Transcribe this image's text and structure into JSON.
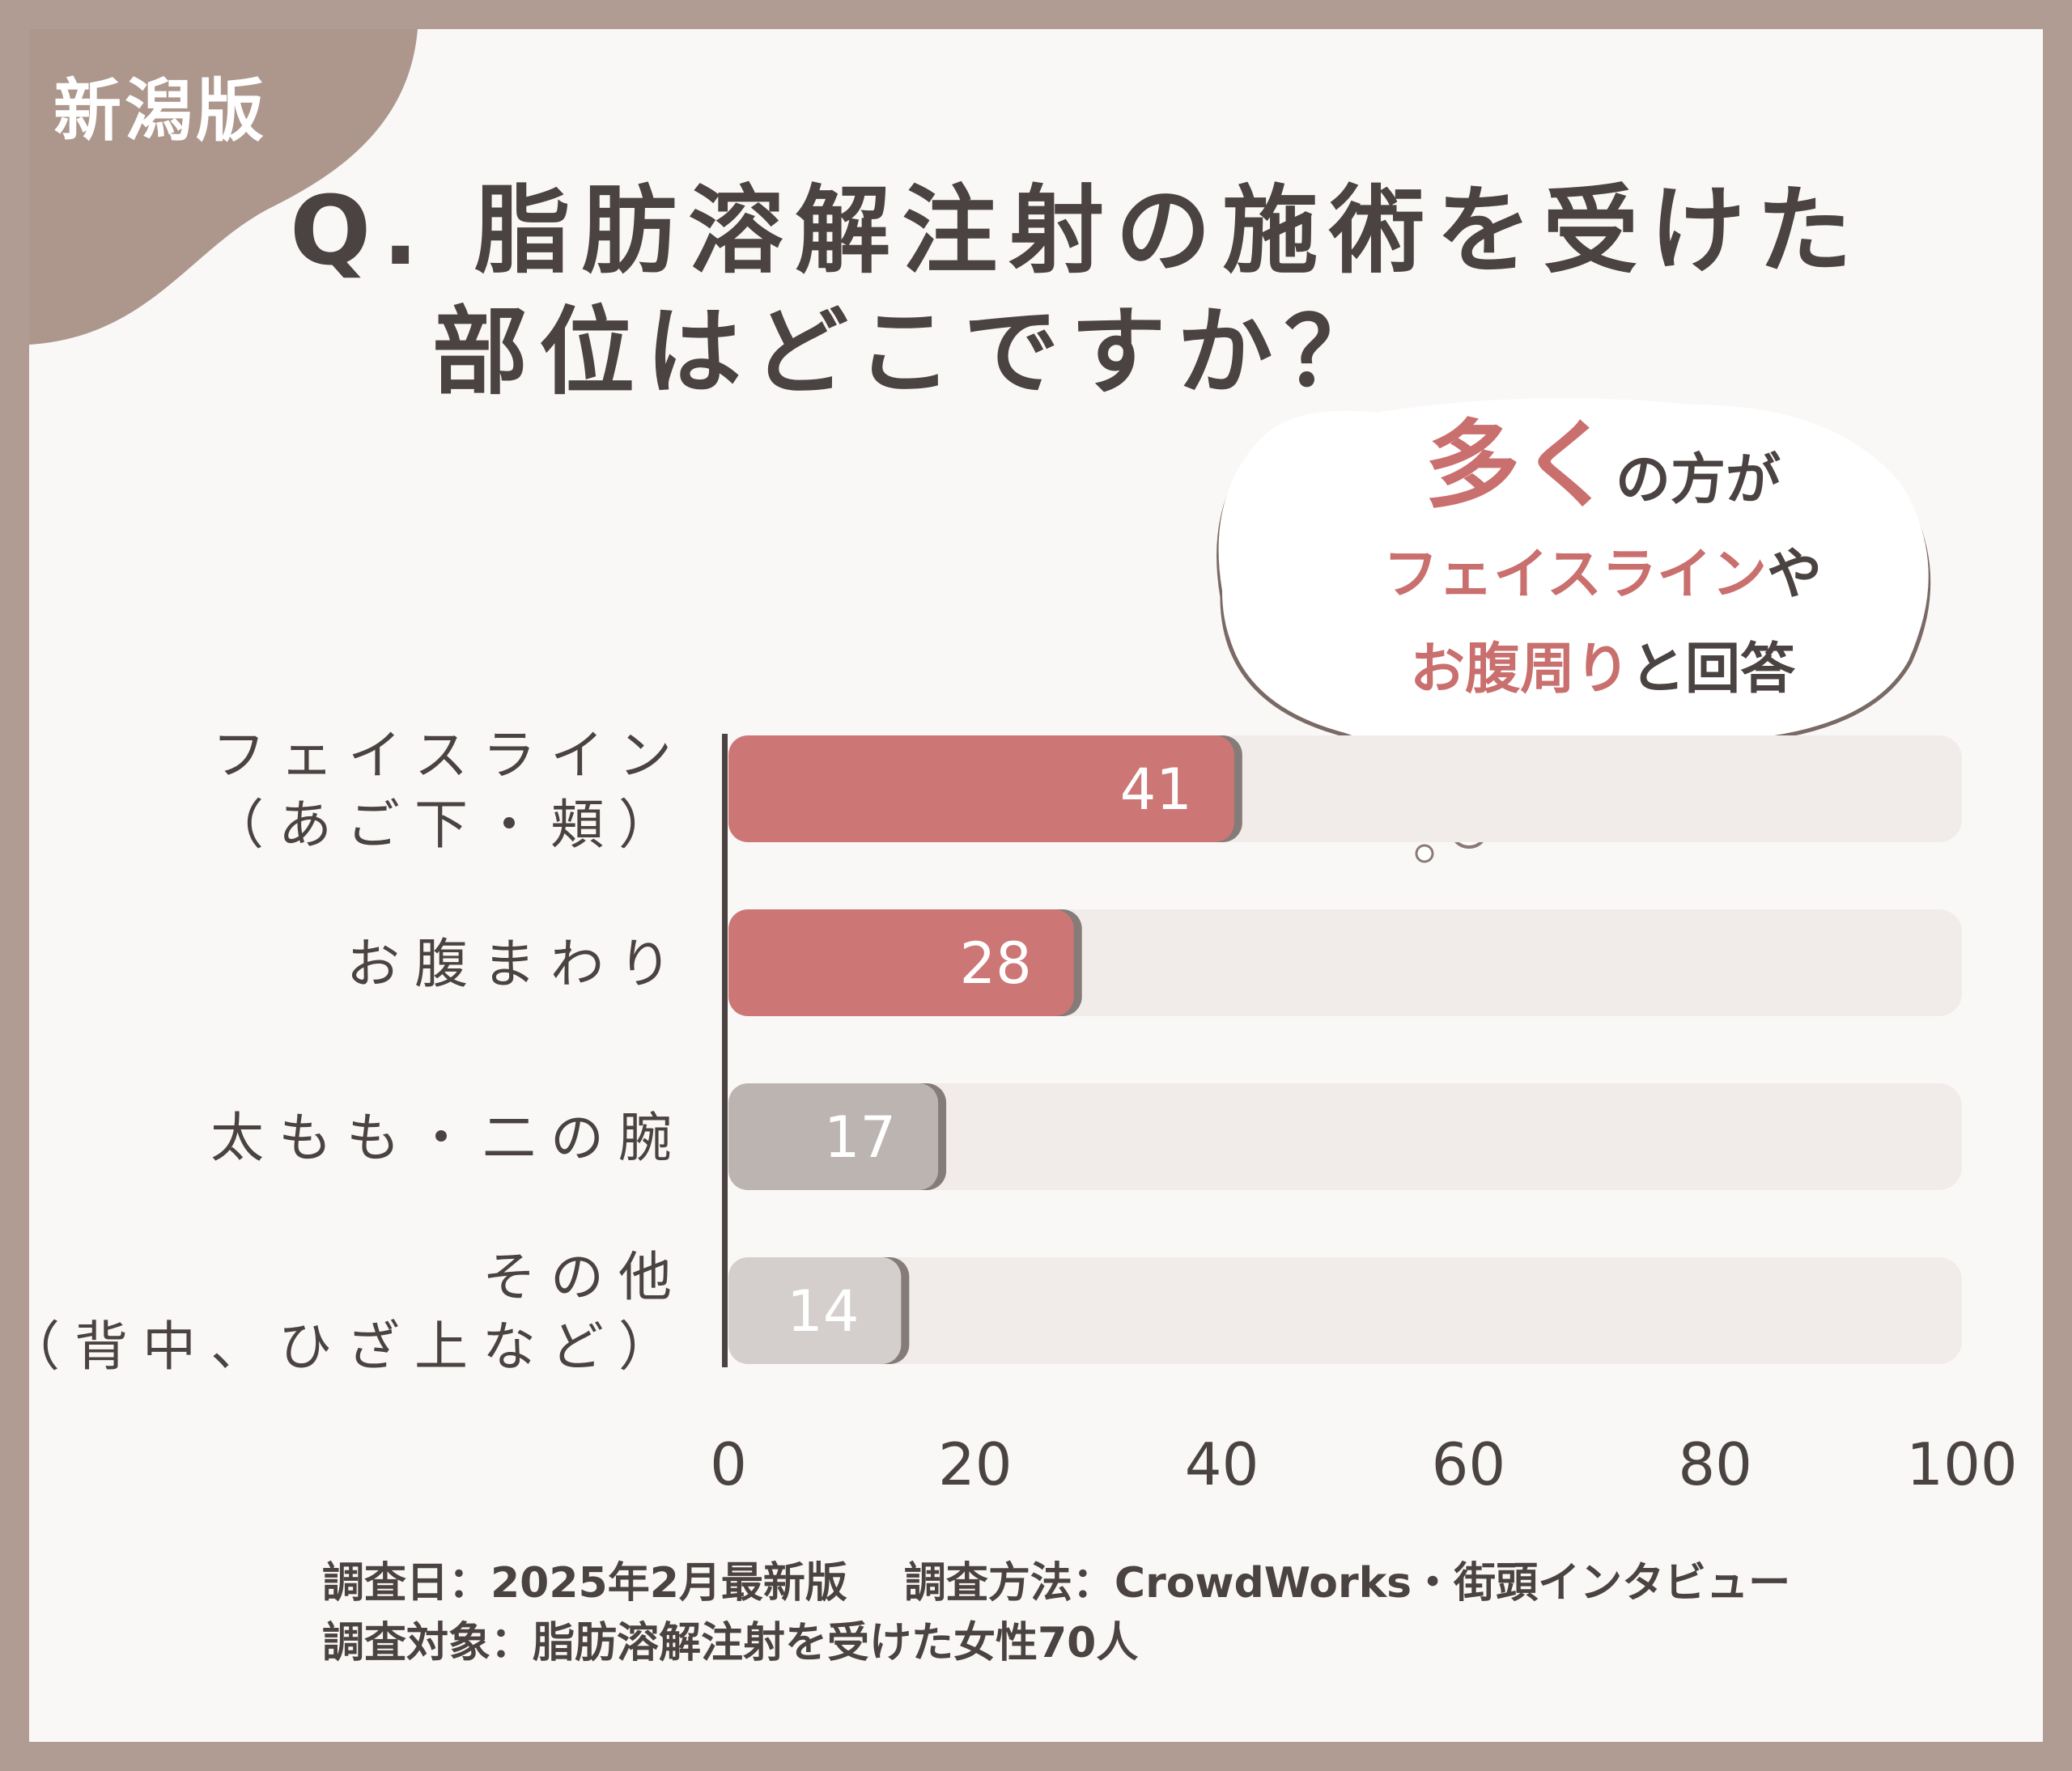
{
  "region_badge": "新潟版",
  "title": {
    "line1": "Q. 脂肪溶解注射の施術を受けた",
    "line2": "部位はどこですか？"
  },
  "callout": {
    "big": "多く",
    "rest1": "の方が",
    "accent2": "フェイスライン",
    "rest2": "や",
    "accent3": "お腹周り",
    "rest3": "と回答"
  },
  "chart_data": {
    "type": "bar",
    "orientation": "horizontal",
    "categories": [
      [
        "フェイスライン",
        "（あご下・頬）"
      ],
      [
        "お腹まわり"
      ],
      [
        "太もも・二の腕"
      ],
      [
        "その他",
        "（背中、ひざ上など）"
      ]
    ],
    "values": [
      41,
      28,
      17,
      14
    ],
    "xlim": [
      0,
      100
    ],
    "xticks": [
      "0",
      "20",
      "40",
      "60",
      "80",
      "100"
    ],
    "bar_colors": [
      "#cc7775",
      "#cc7775",
      "#bcb4b1",
      "#d4cfcd"
    ],
    "track_color": "#f1ecea",
    "grid": false,
    "legend": "none"
  },
  "footer": {
    "date": "調査日：2025年2月最新版",
    "method": "調査方法：CrowdWorks・街頭インタビュー",
    "target": "調査対象：脂肪溶解注射を受けた女性70人"
  }
}
